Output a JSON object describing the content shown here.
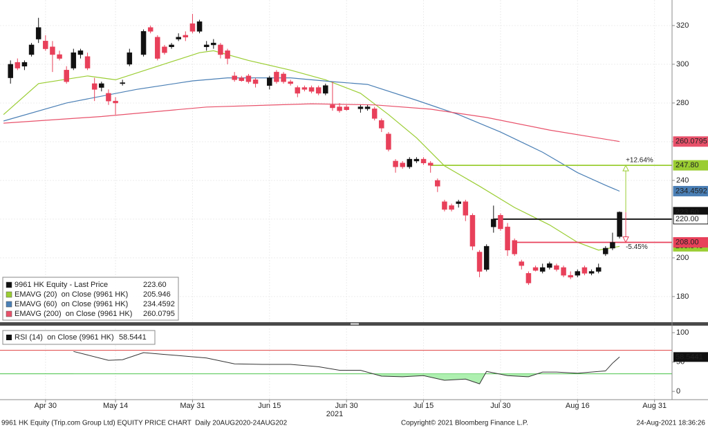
{
  "chart_data": [
    {
      "type": "candlestick",
      "name": "9961 HK Equity - Last Price",
      "last": {
        "value": 223.6,
        "label": "223.60"
      },
      "up_color": "#111111",
      "down_color": "#e8405a",
      "x": [
        "2021-04-23",
        "2021-04-26",
        "2021-04-27",
        "2021-04-28",
        "2021-04-29",
        "2021-04-30",
        "2021-05-03",
        "2021-05-04",
        "2021-05-05",
        "2021-05-06",
        "2021-05-07",
        "2021-05-10",
        "2021-05-11",
        "2021-05-12",
        "2021-05-13",
        "2021-05-14",
        "2021-05-17",
        "2021-05-18",
        "2021-05-20",
        "2021-05-21",
        "2021-05-24",
        "2021-05-25",
        "2021-05-26",
        "2021-05-27",
        "2021-05-28",
        "2021-05-31",
        "2021-06-01",
        "2021-06-02",
        "2021-06-03",
        "2021-06-04",
        "2021-06-07",
        "2021-06-08",
        "2021-06-09",
        "2021-06-10",
        "2021-06-11",
        "2021-06-15",
        "2021-06-16",
        "2021-06-17",
        "2021-06-18",
        "2021-06-21",
        "2021-06-22",
        "2021-06-23",
        "2021-06-24",
        "2021-06-25",
        "2021-06-28",
        "2021-06-29",
        "2021-06-30",
        "2021-07-02",
        "2021-07-05",
        "2021-07-06",
        "2021-07-07",
        "2021-07-08",
        "2021-07-09",
        "2021-07-12",
        "2021-07-13",
        "2021-07-14",
        "2021-07-15",
        "2021-07-16",
        "2021-07-19",
        "2021-07-20",
        "2021-07-21",
        "2021-07-22",
        "2021-07-23",
        "2021-07-26",
        "2021-07-27",
        "2021-07-28",
        "2021-07-29",
        "2021-07-30",
        "2021-08-02",
        "2021-08-03",
        "2021-08-04",
        "2021-08-05",
        "2021-08-06",
        "2021-08-09",
        "2021-08-10",
        "2021-08-11",
        "2021-08-12",
        "2021-08-13",
        "2021-08-16",
        "2021-08-17",
        "2021-08-18",
        "2021-08-19",
        "2021-08-20",
        "2021-08-23",
        "2021-08-24"
      ],
      "open": [
        293,
        301,
        299,
        305,
        313,
        312,
        309,
        305,
        297,
        298,
        305,
        304,
        290,
        288,
        285,
        281,
        290,
        300,
        305,
        319,
        314,
        309,
        309,
        313,
        315,
        321,
        317,
        309,
        310,
        310,
        307,
        294,
        293,
        294,
        292,
        289,
        296,
        295,
        291,
        288,
        288,
        288,
        288,
        285,
        279,
        278,
        278,
        277,
        277,
        277,
        271,
        264,
        250,
        249,
        247,
        250,
        251,
        249,
        240,
        229,
        227,
        228,
        229,
        222,
        203,
        194,
        216,
        222,
        216,
        209,
        198,
        192,
        195,
        193,
        195,
        196,
        195,
        191,
        191,
        195,
        192,
        193,
        202,
        205,
        211
      ],
      "high": [
        302,
        303,
        302,
        311,
        324,
        315,
        312,
        307,
        299,
        308,
        308,
        306,
        293,
        291,
        287,
        283,
        292,
        308,
        318,
        320,
        315,
        310,
        311,
        316,
        317,
        326,
        323,
        312,
        313,
        311,
        308,
        296,
        294,
        295,
        293,
        294,
        297,
        296,
        292,
        289,
        289,
        289,
        289,
        290,
        291,
        280,
        279,
        279,
        279,
        278,
        272,
        265,
        251,
        250,
        252,
        252,
        252,
        250,
        241,
        230,
        228,
        230,
        230,
        223,
        204,
        207,
        227,
        223,
        218,
        210,
        199,
        193,
        196,
        197,
        198,
        197,
        196,
        193,
        194,
        196,
        194,
        197,
        206,
        213,
        224
      ],
      "low": [
        290,
        297,
        297,
        304,
        311,
        307,
        296,
        302,
        290,
        297,
        303,
        297,
        281,
        286,
        279,
        274,
        289,
        299,
        304,
        316,
        302,
        305,
        308,
        312,
        312,
        316,
        316,
        307,
        308,
        303,
        300,
        291,
        291,
        290,
        288,
        287,
        290,
        290,
        289,
        283,
        286,
        285,
        284,
        284,
        276,
        275,
        276,
        275,
        276,
        271,
        265,
        255,
        244,
        246,
        246,
        249,
        248,
        244,
        234,
        224,
        224,
        226,
        219,
        204,
        190,
        193,
        213,
        214,
        201,
        201,
        194,
        186,
        193,
        192,
        194,
        193,
        190,
        189,
        190,
        191,
        191,
        192,
        201,
        204,
        210
      ],
      "close": [
        300,
        298,
        301,
        310,
        319,
        308,
        305,
        303,
        291,
        306,
        307,
        298,
        287,
        290,
        281,
        280,
        290.5,
        306,
        317,
        317,
        303,
        306,
        310,
        314,
        314,
        317,
        322,
        310,
        311,
        305,
        303,
        292,
        291.5,
        291,
        290,
        293,
        291,
        291,
        290,
        285,
        287,
        286,
        285,
        289,
        277.5,
        276,
        276.5,
        278,
        278,
        272,
        267,
        256,
        247,
        247,
        251,
        251,
        249,
        247.8,
        237,
        225,
        225,
        229,
        222,
        206,
        193,
        206,
        220,
        215,
        204,
        202,
        196,
        187,
        193.5,
        195,
        197,
        194,
        191,
        190,
        193,
        192,
        193,
        195,
        205,
        208,
        223.6
      ],
      "series": [
        {
          "name": "EMAVG (20)  on Close (9961 HK)",
          "color": "#9acd32",
          "last": 205.946,
          "x": [
            "2021-04-22",
            "2021-04-29",
            "2021-05-10",
            "2021-05-14",
            "2021-05-24",
            "2021-06-01",
            "2021-06-03",
            "2021-06-10",
            "2021-06-18",
            "2021-06-25",
            "2021-07-02",
            "2021-07-08",
            "2021-07-14",
            "2021-07-20",
            "2021-07-27",
            "2021-08-03",
            "2021-08-10",
            "2021-08-16",
            "2021-08-19",
            "2021-08-24"
          ],
          "values": [
            274,
            290,
            294,
            292,
            299,
            306,
            307,
            302,
            297,
            292,
            285,
            274,
            262,
            247.5,
            237,
            226,
            217,
            208,
            204,
            205.946
          ]
        },
        {
          "name": "EMAVG (60)  on Close (9961 HK)",
          "color": "#4a7fb5",
          "last": 234.4592,
          "x": [
            "2021-04-22",
            "2021-05-05",
            "2021-05-19",
            "2021-05-31",
            "2021-06-07",
            "2021-06-18",
            "2021-06-28",
            "2021-07-05",
            "2021-07-14",
            "2021-07-22",
            "2021-07-30",
            "2021-08-09",
            "2021-08-16",
            "2021-08-20",
            "2021-08-24"
          ],
          "values": [
            270.7,
            280,
            287,
            291.4,
            293,
            293,
            291,
            289.6,
            281.4,
            274,
            265,
            254.6,
            244,
            237.5,
            234.4592
          ]
        },
        {
          "name": "EMAVG (200)  on Close (9961 HK)",
          "color": "#e8516a",
          "last": 260.0795,
          "x": [
            "2021-04-22",
            "2021-05-12",
            "2021-06-02",
            "2021-06-23",
            "2021-07-06",
            "2021-07-16",
            "2021-07-28",
            "2021-08-10",
            "2021-08-24"
          ],
          "values": [
            269.6,
            273,
            277.9,
            279.6,
            279,
            276.8,
            272.5,
            266,
            260.0795
          ]
        }
      ],
      "levels": [
        {
          "value": 247.8,
          "label": "247.80",
          "color": "#9acd32",
          "start": "2021-07-16",
          "change": "+12.64%"
        },
        {
          "value": 220,
          "label": "220.00",
          "color": "#111111",
          "start": "2021-07-29"
        },
        {
          "value": 208,
          "label": "208.00",
          "color": "#e8405a",
          "start": "2021-08-03",
          "change": "-5.45%"
        }
      ],
      "xlim": [
        "2021-04-22",
        "2021-09-03"
      ],
      "ylim": [
        166.4,
        333.2
      ],
      "yticks": [
        180,
        200,
        220,
        240,
        260,
        280,
        300,
        320
      ],
      "grid": true
    },
    {
      "type": "line",
      "series": [
        {
          "name": "RSI (14)  on Close (9961 HK)",
          "color": "#333333",
          "last": 58.5441,
          "x": [
            "2021-05-06",
            "2021-05-10",
            "2021-05-13",
            "2021-05-17",
            "2021-05-20",
            "2021-05-25",
            "2021-05-28",
            "2021-06-02",
            "2021-06-08",
            "2021-06-14",
            "2021-06-18",
            "2021-06-24",
            "2021-06-29",
            "2021-07-02",
            "2021-07-07",
            "2021-07-12",
            "2021-07-15",
            "2021-07-20",
            "2021-07-23",
            "2021-07-27",
            "2021-07-28",
            "2021-08-02",
            "2021-08-05",
            "2021-08-09",
            "2021-08-11",
            "2021-08-16",
            "2021-08-19",
            "2021-08-20",
            "2021-08-23",
            "2021-08-24"
          ],
          "values": [
            68,
            62,
            53,
            54,
            66,
            63,
            60,
            57,
            47,
            46,
            46,
            42,
            36,
            36,
            26,
            25,
            27,
            19,
            21,
            13,
            34,
            27,
            25,
            33,
            33,
            31,
            34,
            35,
            48,
            58.5441
          ]
        }
      ],
      "hlines": [
        {
          "value": 70,
          "color": "#e04040"
        },
        {
          "value": 30,
          "color": "#40c040"
        }
      ],
      "oversold_fill": "#aef0b0",
      "xlim": [
        "2021-04-22",
        "2021-09-03"
      ],
      "ylim": [
        -14,
        107.2
      ],
      "yticks": [
        0,
        50,
        100
      ],
      "xticks": [
        {
          "value": "2021-04-30",
          "label": "Apr 30"
        },
        {
          "value": "2021-05-14",
          "label": "May 14"
        },
        {
          "value": "2021-05-31",
          "label": "May 31"
        },
        {
          "value": "2021-06-15",
          "label": "Jun 15"
        },
        {
          "value": "2021-06-30",
          "label": "Jun 30"
        },
        {
          "value": "2021-07-15",
          "label": "Jul 15"
        },
        {
          "value": "2021-07-30",
          "label": "Jul 30"
        },
        {
          "value": "2021-08-16",
          "label": "Aug 16"
        },
        {
          "value": "2021-08-31",
          "label": "Aug 31"
        }
      ],
      "xlabel": "2021",
      "grid": true
    }
  ],
  "footer": {
    "left": "9961 HK Equity (Trip.com Group Ltd) EQUITY PRICE CHART  Daily 20AUG2020-24AUG202",
    "center": "Copyright© 2021 Bloomberg Finance L.P.",
    "right": "24-Aug-2021 18:36:26"
  }
}
